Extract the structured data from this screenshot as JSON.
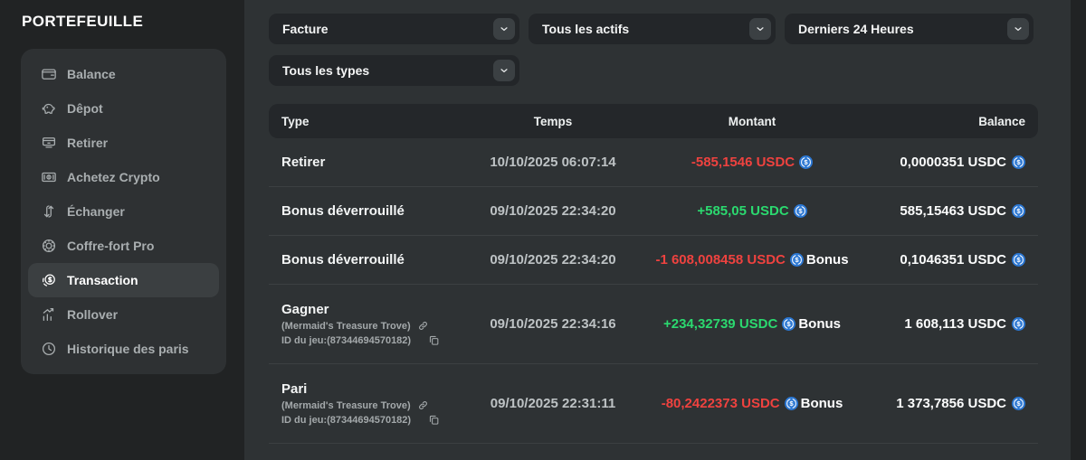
{
  "colors": {
    "usdc_blue": "#2b77d3",
    "negative_amount": "#ef423f",
    "positive_amount": "#2bd96f",
    "main_background": "#2e3234",
    "page_background": "#212324"
  },
  "sidebar": {
    "title": "PORTEFEUILLE",
    "items": [
      {
        "label": "Balance",
        "icon": "wallet-icon",
        "active": false
      },
      {
        "label": "Dêpot",
        "icon": "piggy-bank-icon",
        "active": false
      },
      {
        "label": "Retirer",
        "icon": "withdraw-icon",
        "active": false
      },
      {
        "label": "Achetez Crypto",
        "icon": "buy-crypto-icon",
        "active": false
      },
      {
        "label": "Échanger",
        "icon": "swap-icon",
        "active": false
      },
      {
        "label": "Coffre-fort Pro",
        "icon": "vault-icon",
        "active": false
      },
      {
        "label": "Transaction",
        "icon": "coin-icon",
        "active": true
      },
      {
        "label": "Rollover",
        "icon": "chart-icon",
        "active": false
      },
      {
        "label": "Historique des paris",
        "icon": "clock-icon",
        "active": false
      }
    ]
  },
  "filters": {
    "chevron_icon": "chevron-down-icon",
    "row1": [
      {
        "value": "Facture"
      },
      {
        "value": "Tous les actifs"
      },
      {
        "value": "Derniers 24 Heures"
      }
    ],
    "row2": [
      {
        "value": "Tous les types"
      }
    ]
  },
  "table": {
    "headers": [
      "Type",
      "Temps",
      "Montant",
      "Balance"
    ],
    "icons": {
      "currency": "usdc-icon",
      "link": "link-icon",
      "copy": "copy-icon"
    },
    "rows": [
      {
        "type": "Retirer",
        "time": "10/10/2025 06:07:14",
        "amount": "-585,1546 USDC",
        "direction": "neg",
        "tag": "",
        "balance": "0,0000351 USDC"
      },
      {
        "type": "Bonus déverrouillé",
        "time": "09/10/2025 22:34:20",
        "amount": "+585,05 USDC",
        "direction": "pos",
        "tag": "",
        "balance": "585,15463 USDC"
      },
      {
        "type": "Bonus déverrouillé",
        "time": "09/10/2025 22:34:20",
        "amount": "-1 608,008458 USDC",
        "direction": "neg",
        "tag": "Bonus",
        "balance": "0,1046351 USDC"
      },
      {
        "type": "Gagner",
        "game": "(Mermaid's Treasure Trove)",
        "game_id": "ID du jeu:(87344694570182)",
        "time": "09/10/2025 22:34:16",
        "amount": "+234,32739 USDC",
        "direction": "pos",
        "tag": "Bonus",
        "balance": "1 608,113 USDC"
      },
      {
        "type": "Pari",
        "game": "(Mermaid's Treasure Trove)",
        "game_id": "ID du jeu:(87344694570182)",
        "time": "09/10/2025 22:31:11",
        "amount": "-80,2422373 USDC",
        "direction": "neg",
        "tag": "Bonus",
        "balance": "1 373,7856 USDC"
      }
    ]
  }
}
